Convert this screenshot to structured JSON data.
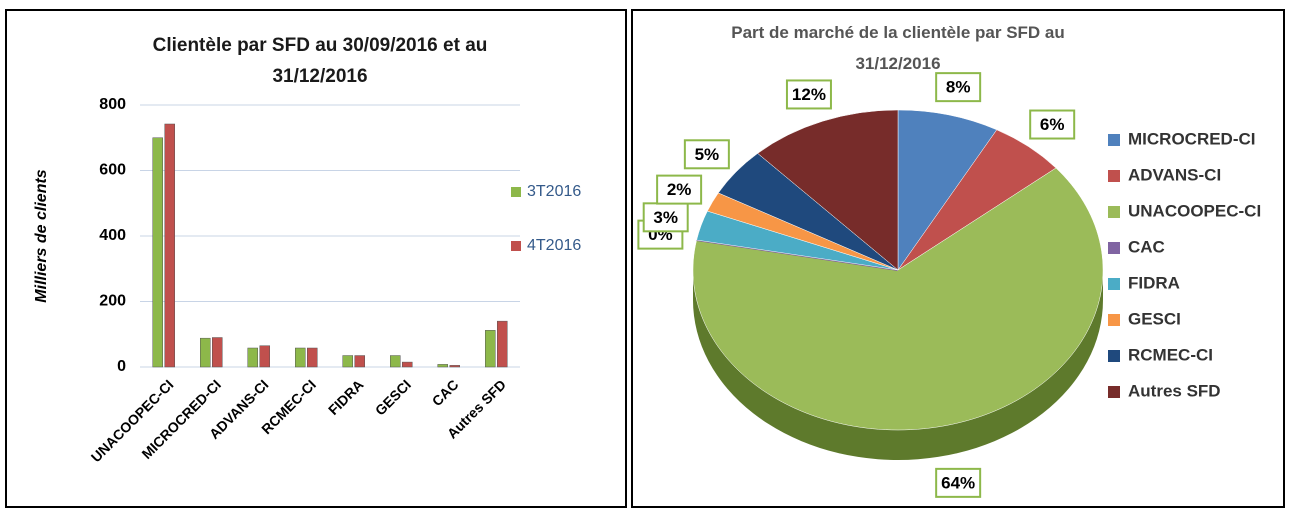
{
  "chart_data": [
    {
      "type": "bar",
      "title": "Clientèle par SFD au 30/09/2016 et au 31/12/2016",
      "y_label": "Milliers de clients",
      "categories": [
        "UNACOOPEC-CI",
        "MICROCRED-CI",
        "ADVANS-CI",
        "RCMEC-CI",
        "FIDRA",
        "GESCI",
        "CAC",
        "Autres SFD"
      ],
      "series": [
        {
          "name": "3T2016",
          "color": "#8db84a",
          "values": [
            700,
            88,
            58,
            58,
            35,
            35,
            8,
            112
          ]
        },
        {
          "name": "4T2016",
          "color": "#c0504d",
          "values": [
            742,
            90,
            65,
            58,
            35,
            15,
            5,
            140
          ]
        }
      ],
      "ylim": [
        0,
        800
      ],
      "yticks": [
        0,
        200,
        400,
        600,
        800
      ],
      "grid": true,
      "legend": "right"
    },
    {
      "type": "pie",
      "title": "Part de marché de la clientèle par SFD au 31/12/2016",
      "categories": [
        "MICROCRED-CI",
        "ADVANS-CI",
        "UNACOOPEC-CI",
        "CAC",
        "FIDRA",
        "GESCI",
        "RCMEC-CI",
        "Autres SFD"
      ],
      "values": [
        8,
        6,
        64,
        0,
        3,
        2,
        5,
        12
      ],
      "value_labels": [
        "8%",
        "6%",
        "64%",
        "0%",
        "3%",
        "2%",
        "5%",
        "12%"
      ],
      "colors": [
        "#4f81bd",
        "#c0504d",
        "#9bbb59",
        "#8064a2",
        "#4bacc6",
        "#f79646",
        "#1f497d",
        "#772c2a"
      ],
      "legend": "right"
    }
  ]
}
